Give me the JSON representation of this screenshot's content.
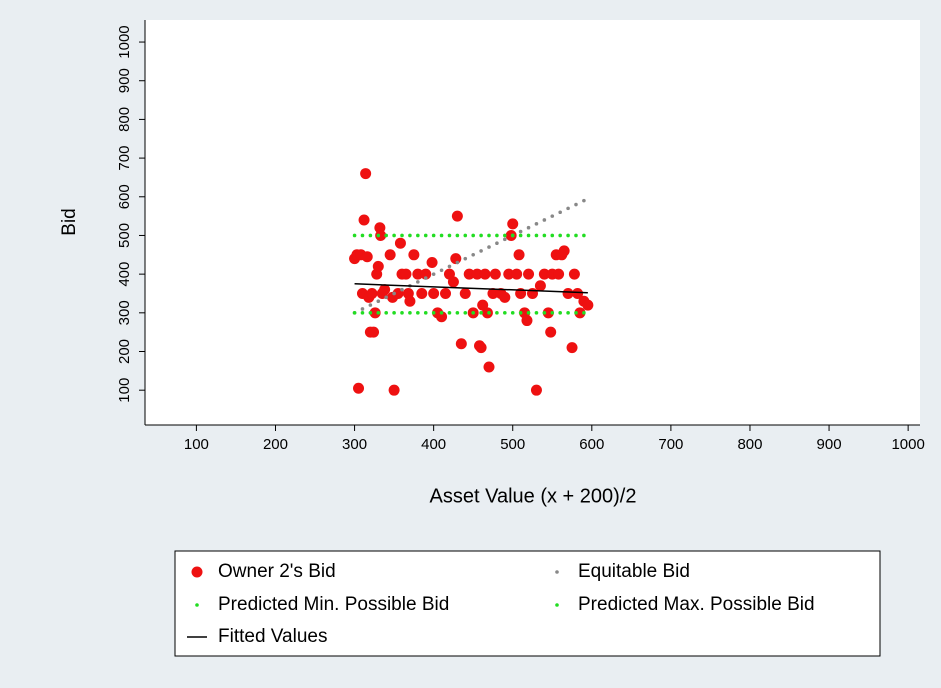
{
  "chart_data": {
    "type": "scatter",
    "xlabel": "Asset Value (x + 200)/2",
    "ylabel": "Bid",
    "xlim": [
      35,
      1015
    ],
    "ylim": [
      10,
      1057
    ],
    "xticks": [
      100,
      200,
      300,
      400,
      500,
      600,
      700,
      800,
      900,
      1000
    ],
    "yticks": [
      100,
      200,
      300,
      400,
      500,
      600,
      700,
      800,
      900,
      1000
    ],
    "series": [
      {
        "name": "Owner 2's Bid",
        "color": "#ee1111",
        "marker": "large-dot",
        "x": [
          300,
          303,
          305,
          308,
          310,
          312,
          314,
          316,
          318,
          320,
          322,
          324,
          326,
          328,
          330,
          332,
          333,
          335,
          338,
          345,
          348,
          350,
          355,
          358,
          360,
          365,
          368,
          370,
          375,
          380,
          385,
          390,
          398,
          400,
          405,
          410,
          415,
          420,
          425,
          428,
          430,
          435,
          440,
          445,
          450,
          455,
          458,
          460,
          462,
          465,
          468,
          470,
          475,
          478,
          485,
          490,
          495,
          498,
          500,
          505,
          508,
          510,
          515,
          518,
          520,
          525,
          530,
          535,
          540,
          545,
          548,
          550,
          555,
          558,
          562,
          565,
          570,
          575,
          578,
          582,
          585,
          590,
          595
        ],
        "values": [
          440,
          450,
          105,
          450,
          350,
          540,
          660,
          445,
          340,
          250,
          350,
          250,
          300,
          400,
          420,
          520,
          500,
          350,
          360,
          450,
          340,
          100,
          350,
          480,
          400,
          400,
          350,
          330,
          450,
          400,
          350,
          400,
          430,
          350,
          300,
          290,
          350,
          400,
          380,
          440,
          550,
          220,
          350,
          400,
          300,
          400,
          215,
          210,
          320,
          400,
          300,
          160,
          350,
          400,
          350,
          340,
          400,
          500,
          530,
          400,
          450,
          350,
          300,
          280,
          400,
          350,
          100,
          370,
          400,
          300,
          250,
          400,
          450,
          400,
          450,
          460,
          350,
          210,
          400,
          350,
          300,
          330,
          320
        ]
      },
      {
        "name": "Equitable Bid",
        "color": "#888888",
        "marker": "small-dot",
        "x": [
          300,
          310,
          320,
          330,
          340,
          350,
          360,
          370,
          380,
          390,
          400,
          410,
          420,
          430,
          440,
          450,
          460,
          470,
          480,
          490,
          500,
          510,
          520,
          530,
          540,
          550,
          560,
          570,
          580,
          590
        ],
        "values": [
          300,
          310,
          320,
          330,
          340,
          350,
          360,
          370,
          380,
          390,
          400,
          410,
          420,
          430,
          440,
          450,
          460,
          470,
          480,
          490,
          500,
          510,
          520,
          530,
          540,
          550,
          560,
          570,
          580,
          590
        ]
      },
      {
        "name": "Predicted Min. Possible Bid",
        "color": "#22dd22",
        "marker": "small-dot",
        "x": [
          300,
          310,
          320,
          330,
          340,
          350,
          360,
          370,
          380,
          390,
          400,
          410,
          420,
          430,
          440,
          450,
          460,
          470,
          480,
          490,
          500,
          510,
          520,
          530,
          540,
          550,
          560,
          570,
          580,
          590
        ],
        "values": [
          300,
          300,
          300,
          300,
          300,
          300,
          300,
          300,
          300,
          300,
          300,
          300,
          300,
          300,
          300,
          300,
          300,
          300,
          300,
          300,
          300,
          300,
          300,
          300,
          300,
          300,
          300,
          300,
          300,
          300
        ]
      },
      {
        "name": "Predicted Max. Possible Bid",
        "color": "#22dd22",
        "marker": "small-dot",
        "x": [
          300,
          310,
          320,
          330,
          340,
          350,
          360,
          370,
          380,
          390,
          400,
          410,
          420,
          430,
          440,
          450,
          460,
          470,
          480,
          490,
          500,
          510,
          520,
          530,
          540,
          550,
          560,
          570,
          580,
          590
        ],
        "values": [
          500,
          500,
          500,
          500,
          500,
          500,
          500,
          500,
          500,
          500,
          500,
          500,
          500,
          500,
          500,
          500,
          500,
          500,
          500,
          500,
          500,
          500,
          500,
          500,
          500,
          500,
          500,
          500,
          500,
          500
        ]
      },
      {
        "name": "Fitted Values",
        "color": "#000000",
        "marker": "line",
        "x": [
          300,
          595
        ],
        "values": [
          375,
          352
        ]
      }
    ]
  }
}
